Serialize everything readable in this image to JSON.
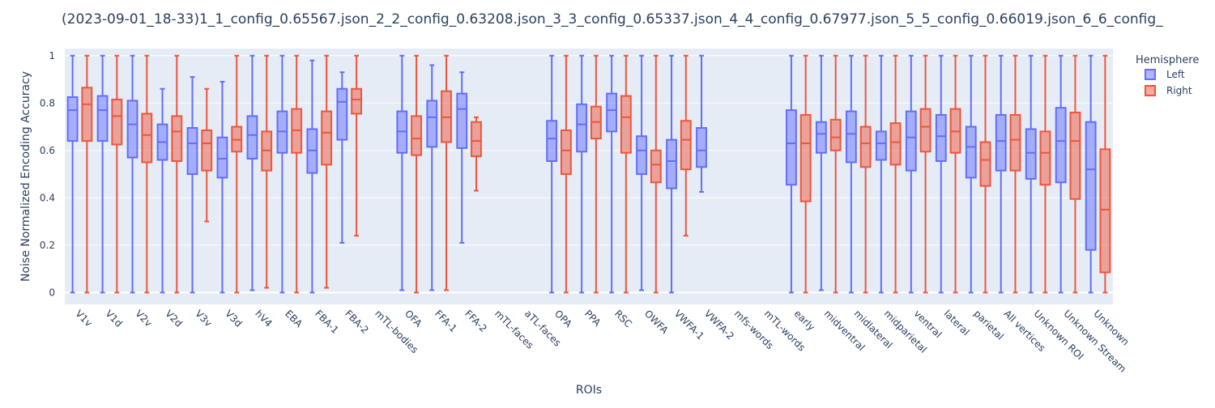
{
  "chart_data": {
    "type": "box",
    "title": "(2023-09-01_18-33)1_1_config_0.65567.json_2_2_config_0.63208.json_3_3_config_0.65337.json_4_4_config_0.67977.json_5_5_config_0.66019.json_6_6_config_",
    "xlabel": "ROIs",
    "ylabel": "Noise Normalized Encoding Accuracy",
    "ylim": [
      -0.05,
      1.03
    ],
    "yticks": [
      "0",
      "0.2",
      "0.4",
      "0.6",
      "0.8",
      "1"
    ],
    "grid": true,
    "legend_title": "Hemisphere",
    "legend_position": "top-right",
    "categories": [
      "V1v",
      "V1d",
      "V2v",
      "V2d",
      "V3v",
      "V3d",
      "hV4",
      "EBA",
      "FBA-1",
      "FBA-2",
      "mTL-bodies",
      "OFA",
      "FFA-1",
      "FFA-2",
      "mTL-faces",
      "aTL-faces",
      "OPA",
      "PPA",
      "RSC",
      "OWFA",
      "VWFA-1",
      "VWFA-2",
      "mfs-words",
      "mTL-words",
      "early",
      "midventral",
      "midlateral",
      "midparietal",
      "ventral",
      "lateral",
      "parietal",
      "All vertices",
      "Unknown ROI",
      "Unknown Stream",
      "Unknown"
    ],
    "series": [
      {
        "name": "Left",
        "color": "#636efa",
        "boxes": [
          {
            "min": 0,
            "q1": 0.64,
            "median": 0.77,
            "q3": 0.825,
            "max": 1
          },
          {
            "min": 0.0,
            "q1": 0.64,
            "median": 0.77,
            "q3": 0.83,
            "max": 1
          },
          {
            "min": 0,
            "q1": 0.57,
            "median": 0.71,
            "q3": 0.81,
            "max": 1
          },
          {
            "min": 0,
            "q1": 0.56,
            "median": 0.635,
            "q3": 0.71,
            "max": 0.86
          },
          {
            "min": 0,
            "q1": 0.5,
            "median": 0.63,
            "q3": 0.695,
            "max": 0.91
          },
          {
            "min": 0,
            "q1": 0.485,
            "median": 0.565,
            "q3": 0.655,
            "max": 0.89
          },
          {
            "min": 0.01,
            "q1": 0.565,
            "median": 0.665,
            "q3": 0.745,
            "max": 1
          },
          {
            "min": 0,
            "q1": 0.59,
            "median": 0.68,
            "q3": 0.765,
            "max": 1
          },
          {
            "min": 0,
            "q1": 0.505,
            "median": 0.6,
            "q3": 0.69,
            "max": 0.98
          },
          {
            "min": 0.21,
            "q1": 0.645,
            "median": 0.805,
            "q3": 0.86,
            "max": 0.93
          },
          null,
          {
            "min": 0.01,
            "q1": 0.59,
            "median": 0.68,
            "q3": 0.765,
            "max": 1
          },
          {
            "min": 0.01,
            "q1": 0.615,
            "median": 0.74,
            "q3": 0.81,
            "max": 0.96
          },
          {
            "min": 0.21,
            "q1": 0.61,
            "median": 0.775,
            "q3": 0.84,
            "max": 0.93
          },
          null,
          null,
          {
            "min": 0,
            "q1": 0.555,
            "median": 0.65,
            "q3": 0.725,
            "max": 1
          },
          {
            "min": 0,
            "q1": 0.595,
            "median": 0.71,
            "q3": 0.795,
            "max": 1
          },
          {
            "min": 0,
            "q1": 0.68,
            "median": 0.77,
            "q3": 0.84,
            "max": 1
          },
          {
            "min": 0.01,
            "q1": 0.5,
            "median": 0.6,
            "q3": 0.66,
            "max": 1
          },
          {
            "min": 0,
            "q1": 0.44,
            "median": 0.555,
            "q3": 0.645,
            "max": 1
          },
          {
            "min": 0.425,
            "q1": 0.53,
            "median": 0.6,
            "q3": 0.695,
            "max": 1
          },
          null,
          null,
          {
            "min": 0,
            "q1": 0.455,
            "median": 0.63,
            "q3": 0.77,
            "max": 1
          },
          {
            "min": 0.01,
            "q1": 0.59,
            "median": 0.67,
            "q3": 0.72,
            "max": 1
          },
          {
            "min": 0.0,
            "q1": 0.55,
            "median": 0.67,
            "q3": 0.765,
            "max": 1
          },
          {
            "min": 0,
            "q1": 0.56,
            "median": 0.63,
            "q3": 0.68,
            "max": 1
          },
          {
            "min": 0,
            "q1": 0.515,
            "median": 0.655,
            "q3": 0.765,
            "max": 1
          },
          {
            "min": 0,
            "q1": 0.555,
            "median": 0.66,
            "q3": 0.75,
            "max": 1
          },
          {
            "min": 0,
            "q1": 0.485,
            "median": 0.615,
            "q3": 0.7,
            "max": 1
          },
          {
            "min": 0,
            "q1": 0.515,
            "median": 0.64,
            "q3": 0.75,
            "max": 1
          },
          {
            "min": 0,
            "q1": 0.48,
            "median": 0.59,
            "q3": 0.69,
            "max": 1
          },
          {
            "min": 0,
            "q1": 0.465,
            "median": 0.64,
            "q3": 0.78,
            "max": 1
          },
          {
            "min": 0,
            "q1": 0.18,
            "median": 0.52,
            "q3": 0.72,
            "max": 1
          }
        ]
      },
      {
        "name": "Right",
        "color": "#ef553b",
        "boxes": [
          {
            "min": 0,
            "q1": 0.64,
            "median": 0.795,
            "q3": 0.865,
            "max": 1
          },
          {
            "min": 0,
            "q1": 0.625,
            "median": 0.745,
            "q3": 0.815,
            "max": 1
          },
          {
            "min": 0,
            "q1": 0.55,
            "median": 0.665,
            "q3": 0.755,
            "max": 1
          },
          {
            "min": 0,
            "q1": 0.555,
            "median": 0.68,
            "q3": 0.745,
            "max": 1
          },
          {
            "min": 0.3,
            "q1": 0.515,
            "median": 0.63,
            "q3": 0.685,
            "max": 0.86
          },
          {
            "min": 0.0,
            "q1": 0.595,
            "median": 0.645,
            "q3": 0.7,
            "max": 1
          },
          {
            "min": 0.02,
            "q1": 0.515,
            "median": 0.6,
            "q3": 0.68,
            "max": 1
          },
          {
            "min": 0,
            "q1": 0.59,
            "median": 0.685,
            "q3": 0.775,
            "max": 1
          },
          {
            "min": 0.02,
            "q1": 0.54,
            "median": 0.675,
            "q3": 0.765,
            "max": 1
          },
          {
            "min": 0.24,
            "q1": 0.755,
            "median": 0.815,
            "q3": 0.86,
            "max": 1
          },
          null,
          {
            "min": 0,
            "q1": 0.58,
            "median": 0.65,
            "q3": 0.745,
            "max": 1
          },
          {
            "min": 0.01,
            "q1": 0.635,
            "median": 0.74,
            "q3": 0.85,
            "max": 1
          },
          {
            "min": 0.43,
            "q1": 0.575,
            "median": 0.64,
            "q3": 0.72,
            "max": 0.74
          },
          null,
          null,
          {
            "min": 0,
            "q1": 0.5,
            "median": 0.6,
            "q3": 0.685,
            "max": 1
          },
          {
            "min": 0,
            "q1": 0.65,
            "median": 0.72,
            "q3": 0.785,
            "max": 1
          },
          {
            "min": 0,
            "q1": 0.59,
            "median": 0.74,
            "q3": 0.83,
            "max": 1
          },
          {
            "min": 0.0,
            "q1": 0.465,
            "median": 0.54,
            "q3": 0.6,
            "max": 1
          },
          {
            "min": 0.24,
            "q1": 0.52,
            "median": 0.645,
            "q3": 0.725,
            "max": 1
          },
          null,
          null,
          null,
          {
            "min": 0,
            "q1": 0.385,
            "median": 0.63,
            "q3": 0.75,
            "max": 1
          },
          {
            "min": 0,
            "q1": 0.6,
            "median": 0.655,
            "q3": 0.73,
            "max": 1
          },
          {
            "min": 0,
            "q1": 0.53,
            "median": 0.63,
            "q3": 0.7,
            "max": 1
          },
          {
            "min": 0,
            "q1": 0.54,
            "median": 0.635,
            "q3": 0.715,
            "max": 1
          },
          {
            "min": 0,
            "q1": 0.595,
            "median": 0.7,
            "q3": 0.775,
            "max": 1
          },
          {
            "min": 0,
            "q1": 0.59,
            "median": 0.68,
            "q3": 0.775,
            "max": 1
          },
          {
            "min": 0,
            "q1": 0.45,
            "median": 0.56,
            "q3": 0.635,
            "max": 1
          },
          {
            "min": 0,
            "q1": 0.515,
            "median": 0.645,
            "q3": 0.75,
            "max": 1
          },
          {
            "min": 0,
            "q1": 0.455,
            "median": 0.59,
            "q3": 0.68,
            "max": 1
          },
          {
            "min": 0,
            "q1": 0.395,
            "median": 0.64,
            "q3": 0.76,
            "max": 1
          },
          {
            "min": 0,
            "q1": 0.085,
            "median": 0.35,
            "q3": 0.605,
            "max": 1
          }
        ]
      }
    ]
  }
}
